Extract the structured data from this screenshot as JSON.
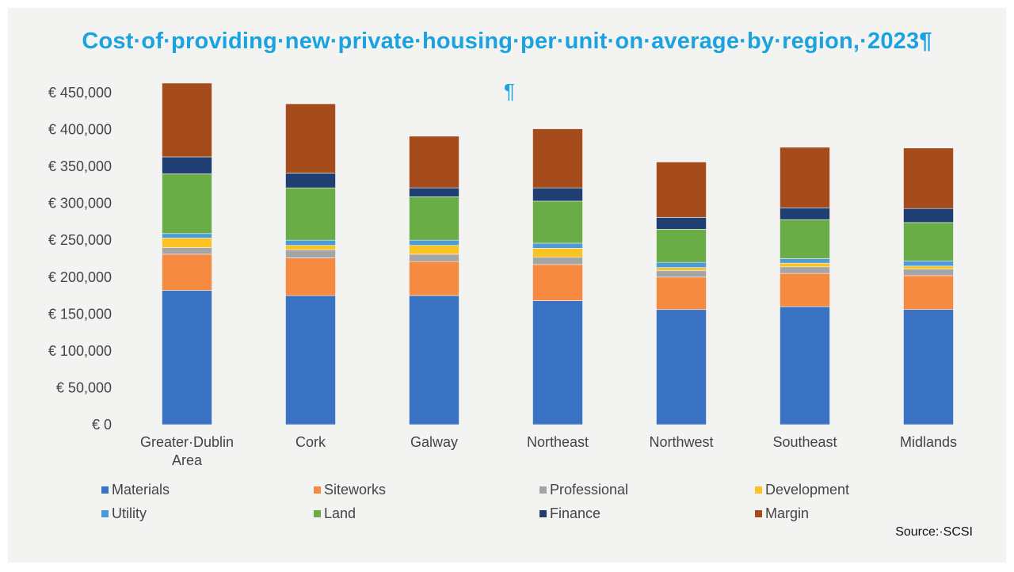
{
  "title": "Cost·of·providing·new·private·housing·per·unit·on·average·by·region,·2023¶",
  "pilcrow": "¶",
  "source": "Source:·SCSI",
  "chart_data": {
    "type": "bar",
    "stacked": true,
    "categories": [
      "Greater·Dublin Area",
      "Cork",
      "Galway",
      "Northeast",
      "Northwest",
      "Southeast",
      "Midlands"
    ],
    "category_lines": [
      [
        "Greater·Dublin",
        "Area"
      ],
      [
        "Cork"
      ],
      [
        "Galway"
      ],
      [
        "Northeast"
      ],
      [
        "Northwest"
      ],
      [
        "Southeast"
      ],
      [
        "Midlands"
      ]
    ],
    "ylim": [
      0,
      450000
    ],
    "yticks": [
      0,
      50000,
      100000,
      150000,
      200000,
      250000,
      300000,
      350000,
      400000,
      450000
    ],
    "ytick_labels": [
      "€ 0",
      "€ 50,000",
      "€ 100,000",
      "€ 150,000",
      "€ 200,000",
      "€ 250,000",
      "€ 300,000",
      "€ 350,000",
      "€ 400,000",
      "€ 450,000"
    ],
    "grid": false,
    "legend_position": "bottom",
    "series": [
      {
        "name": "Materials",
        "color": "#3a72c4",
        "values": [
          182000,
          175000,
          175000,
          168000,
          156000,
          160000,
          156000
        ]
      },
      {
        "name": "Siteworks",
        "color": "#f58a40",
        "values": [
          49000,
          51000,
          46000,
          49000,
          44000,
          45000,
          46000
        ]
      },
      {
        "name": "Professional",
        "color": "#a5a5a5",
        "values": [
          9000,
          11000,
          10000,
          10000,
          9000,
          9000,
          9000
        ]
      },
      {
        "name": "Development",
        "color": "#fbc223",
        "values": [
          13000,
          6000,
          12000,
          12000,
          4000,
          5000,
          4000
        ]
      },
      {
        "name": "Utility",
        "color": "#4b9bd6",
        "values": [
          6000,
          7000,
          7000,
          7000,
          7000,
          6000,
          7000
        ]
      },
      {
        "name": "Land",
        "color": "#6aad46",
        "values": [
          81000,
          71000,
          59000,
          57000,
          45000,
          53000,
          52000
        ]
      },
      {
        "name": "Finance",
        "color": "#1f3f72",
        "values": [
          23000,
          20000,
          12000,
          18000,
          16000,
          16000,
          19000
        ]
      },
      {
        "name": "Margin",
        "color": "#a54b1c",
        "values": [
          100000,
          94000,
          70000,
          80000,
          75000,
          82000,
          82000
        ]
      }
    ]
  }
}
